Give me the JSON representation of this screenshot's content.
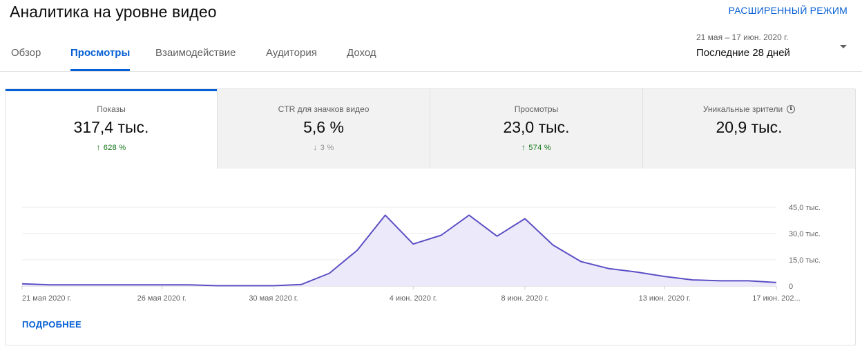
{
  "header": {
    "title": "Аналитика на уровне видео",
    "advanced_mode": "РАСШИРЕННЫЙ РЕЖИМ"
  },
  "tabs": [
    {
      "label": "Обзор",
      "active": false
    },
    {
      "label": "Просмотры",
      "active": true
    },
    {
      "label": "Взаимодействие",
      "active": false
    },
    {
      "label": "Аудитория",
      "active": false
    },
    {
      "label": "Доход",
      "active": false
    }
  ],
  "date_picker": {
    "range": "21 мая – 17 июн. 2020 г.",
    "period": "Последние 28 дней"
  },
  "metrics": [
    {
      "label": "Показы",
      "value": "317,4 тыс.",
      "change": "628 %",
      "direction": "up",
      "selected": true
    },
    {
      "label": "CTR для значков видео",
      "value": "5,6 %",
      "change": "3 %",
      "direction": "down",
      "selected": false
    },
    {
      "label": "Просмотры",
      "value": "23,0 тыс.",
      "change": "574 %",
      "direction": "up",
      "selected": false
    },
    {
      "label": "Уникальные зрители",
      "value": "20,9 тыс.",
      "change": "",
      "direction": "none",
      "selected": false
    }
  ],
  "more_link": "ПОДРОБНЕЕ",
  "colors": {
    "accent": "#065fd4",
    "positive": "#107516",
    "line": "#5b4fc4",
    "area": "#eceafa"
  },
  "chart_data": {
    "type": "area",
    "x": [
      "2020-05-21",
      "2020-05-22",
      "2020-05-23",
      "2020-05-24",
      "2020-05-25",
      "2020-05-26",
      "2020-05-27",
      "2020-05-28",
      "2020-05-29",
      "2020-05-30",
      "2020-05-31",
      "2020-06-01",
      "2020-06-02",
      "2020-06-03",
      "2020-06-04",
      "2020-06-05",
      "2020-06-06",
      "2020-06-07",
      "2020-06-08",
      "2020-06-09",
      "2020-06-10",
      "2020-06-11",
      "2020-06-12",
      "2020-06-13",
      "2020-06-14",
      "2020-06-15",
      "2020-06-16",
      "2020-06-17"
    ],
    "series": [
      {
        "values": [
          1300,
          700,
          700,
          700,
          700,
          700,
          700,
          200,
          200,
          200,
          900,
          7300,
          20500,
          40500,
          24000,
          29000,
          40500,
          28500,
          38500,
          23500,
          14000,
          10000,
          8000,
          5500,
          3500,
          3000,
          3000,
          2000
        ]
      }
    ],
    "ylim": [
      0,
      45000
    ],
    "yticks": [
      0,
      15000,
      30000,
      45000
    ],
    "ytick_labels": [
      "0",
      "15,0 тыс.",
      "30,0 тыс.",
      "45,0 тыс."
    ],
    "xtick_labels": [
      {
        "date": "2020-05-21",
        "label": "21 мая 2020 г."
      },
      {
        "date": "2020-05-26",
        "label": "26 мая 2020 г."
      },
      {
        "date": "2020-05-30",
        "label": "30 мая 2020 г."
      },
      {
        "date": "2020-06-04",
        "label": "4 июн. 2020 г."
      },
      {
        "date": "2020-06-08",
        "label": "8 июн. 2020 г."
      },
      {
        "date": "2020-06-13",
        "label": "13 июн. 2020 г."
      },
      {
        "date": "2020-06-17",
        "label": "17 июн. 202..."
      }
    ],
    "grid": true
  }
}
